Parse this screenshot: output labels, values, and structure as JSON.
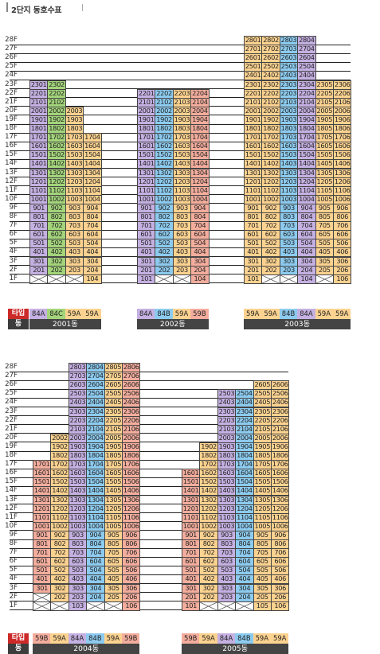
{
  "page": {
    "title": "2단지 동호수표",
    "type_label": "타입",
    "building_label": "동"
  },
  "colors": {
    "84A": "#c5b0e2",
    "84B": "#8ccbef",
    "84C": "#a3d47a",
    "59A": "#fbd28f",
    "59B": "#f4ad9d"
  },
  "blocks": [
    {
      "floors": [
        "28F",
        "27F",
        "26F",
        "25F",
        "24F",
        "23F",
        "22F",
        "21F",
        "20F",
        "19F",
        "18F",
        "17F",
        "16F",
        "15F",
        "14F",
        "13F",
        "12F",
        "11F",
        "10F",
        "9F",
        "8F",
        "7F",
        "6F",
        "5F",
        "4F",
        "3F",
        "2F",
        "1F"
      ],
      "buildings": [
        {
          "name": "2001동",
          "columns": [
            {
              "unit": 1,
              "type": "84A",
              "max": 23,
              "min": 2,
              "empty": [
                1
              ]
            },
            {
              "unit": 2,
              "type": "84C",
              "max": 23,
              "min": 2,
              "empty": [
                1
              ]
            },
            {
              "unit": 3,
              "type": "59A",
              "max": 20,
              "min": 2,
              "empty": [
                1
              ]
            },
            {
              "unit": 4,
              "type": "59A",
              "max": 17,
              "min": 1,
              "empty": []
            }
          ]
        },
        {
          "name": "2002동",
          "columns": [
            {
              "unit": 1,
              "type": "84A",
              "max": 22,
              "min": 1,
              "empty": []
            },
            {
              "unit": 2,
              "type": "84B",
              "max": 22,
              "min": 2,
              "empty": [
                1
              ]
            },
            {
              "unit": 3,
              "type": "59A",
              "max": 22,
              "min": 2,
              "empty": [
                1
              ]
            },
            {
              "unit": 4,
              "type": "59B",
              "max": 22,
              "min": 1,
              "empty": []
            }
          ]
        },
        {
          "name": "2003동",
          "columns": [
            {
              "unit": 1,
              "type": "59A",
              "max": 28,
              "min": 1,
              "empty": []
            },
            {
              "unit": 2,
              "type": "59A",
              "max": 28,
              "min": 2,
              "empty": [
                1
              ]
            },
            {
              "unit": 3,
              "type": "84B",
              "max": 28,
              "min": 2,
              "empty": [
                1
              ]
            },
            {
              "unit": 4,
              "type": "84A",
              "max": 28,
              "min": 1,
              "empty": []
            },
            {
              "unit": 5,
              "type": "59A",
              "max": 23,
              "min": 2,
              "empty": [
                1
              ]
            },
            {
              "unit": 6,
              "type": "59A",
              "max": 23,
              "min": 1,
              "empty": []
            }
          ]
        }
      ]
    },
    {
      "floors": [
        "28F",
        "27F",
        "26F",
        "25F",
        "24F",
        "23F",
        "22F",
        "21F",
        "20F",
        "19F",
        "18F",
        "17F",
        "16F",
        "15F",
        "14F",
        "13F",
        "12F",
        "11F",
        "10F",
        "9F",
        "8F",
        "7F",
        "6F",
        "5F",
        "4F",
        "3F",
        "2F",
        "1F"
      ],
      "buildings": [
        {
          "name": "2004동",
          "columns": [
            {
              "unit": 1,
              "type": "59B",
              "max": 17,
              "min": 3,
              "empty": [
                2,
                1
              ]
            },
            {
              "unit": 2,
              "type": "59A",
              "max": 20,
              "min": 2,
              "empty": [
                1
              ]
            },
            {
              "unit": 3,
              "type": "84A",
              "max": 28,
              "min": 1,
              "empty": []
            },
            {
              "unit": 4,
              "type": "84B",
              "max": 28,
              "min": 2,
              "empty": [
                1
              ]
            },
            {
              "unit": 5,
              "type": "59A",
              "max": 28,
              "min": 2,
              "empty": [
                1
              ]
            },
            {
              "unit": 6,
              "type": "59B",
              "max": 28,
              "min": 1,
              "empty": []
            }
          ]
        },
        {
          "name": "2005동",
          "columns": [
            {
              "unit": 1,
              "type": "59B",
              "max": 16,
              "min": 1,
              "empty": []
            },
            {
              "unit": 2,
              "type": "59A",
              "max": 19,
              "min": 2,
              "empty": [
                1
              ]
            },
            {
              "unit": 3,
              "type": "84A",
              "max": 25,
              "min": 2,
              "empty": [
                1
              ]
            },
            {
              "unit": 4,
              "type": "84B",
              "max": 25,
              "min": 2,
              "empty": [
                1
              ]
            },
            {
              "unit": 5,
              "type": "59A",
              "max": 26,
              "min": 1,
              "empty": []
            },
            {
              "unit": 6,
              "type": "59A",
              "max": 26,
              "min": 1,
              "empty": []
            }
          ]
        }
      ]
    }
  ]
}
